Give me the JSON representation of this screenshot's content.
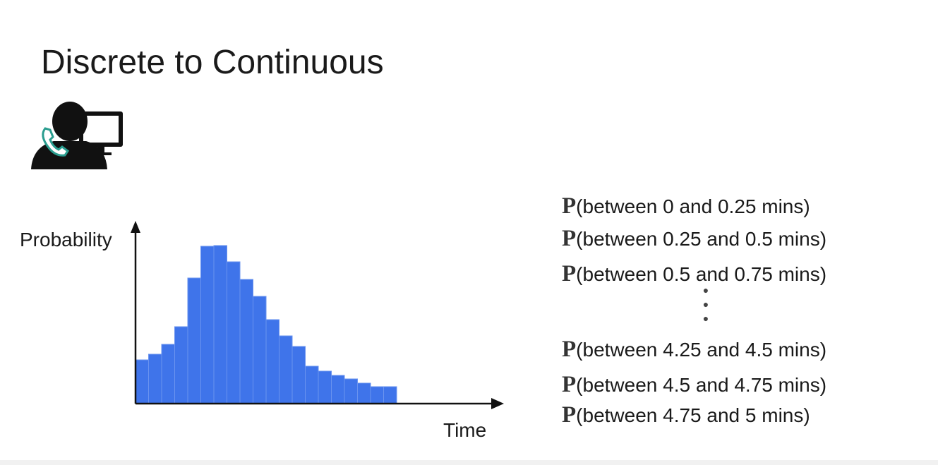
{
  "title": "Discrete to Continuous",
  "chart_data": {
    "type": "bar",
    "x_label": "Time",
    "y_label": "Probability",
    "categories": [
      null,
      null,
      null,
      null,
      null,
      null,
      null,
      null,
      null,
      null,
      null,
      null,
      null,
      null,
      null,
      null,
      null,
      null,
      null,
      null
    ],
    "values": [
      62,
      70,
      84,
      109,
      178,
      223,
      224,
      201,
      176,
      152,
      119,
      96,
      81,
      53,
      46,
      40,
      35,
      29,
      24,
      24
    ],
    "color": "#3f74ea",
    "ylim": [
      0,
      240
    ]
  },
  "probabilities": [
    {
      "symbol": "P",
      "text": "(between 0 and 0.25 mins)"
    },
    {
      "symbol": "P",
      "text": "(between 0.25 and 0.5 mins)"
    },
    {
      "symbol": "P",
      "text": "(between 0.5 and 0.75 mins)"
    },
    {
      "symbol": "P",
      "text": "(between 4.25 and 4.5 mins)"
    },
    {
      "symbol": "P",
      "text": "(between 4.5 and 4.75 mins)"
    },
    {
      "symbol": "P",
      "text": "(between 4.75 and 5 mins)"
    }
  ]
}
